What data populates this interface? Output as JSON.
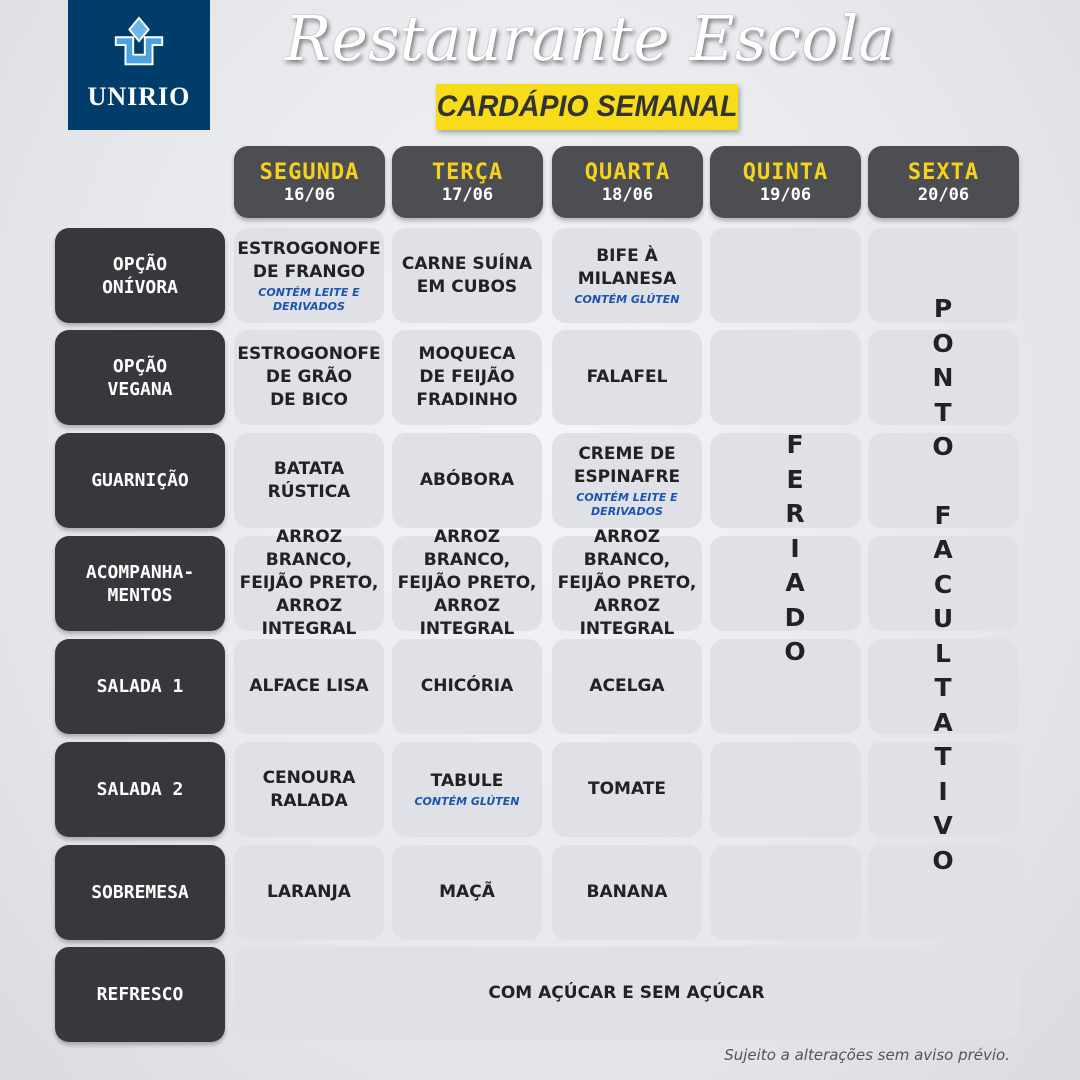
{
  "header": {
    "logo_text": "UNIRIO",
    "title": "Restaurante Escola",
    "subtitle": "CARDÁPIO SEMANAL"
  },
  "days": [
    {
      "name": "SEGUNDA",
      "date": "16/06"
    },
    {
      "name": "TERÇA",
      "date": "17/06"
    },
    {
      "name": "QUARTA",
      "date": "18/06"
    },
    {
      "name": "QUINTA",
      "date": "19/06"
    },
    {
      "name": "SEXTA",
      "date": "20/06"
    }
  ],
  "rows": [
    {
      "label": "OPÇÃO\nONÍVORA",
      "cells": [
        {
          "text": "ESTROGONOFE\nDE FRANGO",
          "note": "CONTÉM LEITE E\nDERIVADOS"
        },
        {
          "text": "CARNE SUÍNA\nEM CUBOS"
        },
        {
          "text": "BIFE À\nMILANESA",
          "note": "CONTÉM GLÚTEN"
        }
      ]
    },
    {
      "label": "OPÇÃO\nVEGANA",
      "cells": [
        {
          "text": "ESTROGONOFE\nDE GRÃO\nDE BICO"
        },
        {
          "text": "MOQUECA\nDE FEIJÃO\nFRADINHO"
        },
        {
          "text": "FALAFEL"
        }
      ]
    },
    {
      "label": "GUARNIÇÃO",
      "cells": [
        {
          "text": "BATATA\nRÚSTICA"
        },
        {
          "text": "ABÓBORA"
        },
        {
          "text": "CREME DE\nESPINAFRE",
          "note": "CONTÉM LEITE E\nDERIVADOS"
        }
      ]
    },
    {
      "label": "ACOMPANHA-\nMENTOS",
      "cells": [
        {
          "text": "ARROZ BRANCO,\nFEIJÃO PRETO,\nARROZ INTEGRAL"
        },
        {
          "text": "ARROZ BRANCO,\nFEIJÃO PRETO,\nARROZ INTEGRAL"
        },
        {
          "text": "ARROZ BRANCO,\nFEIJÃO PRETO,\nARROZ INTEGRAL"
        }
      ]
    },
    {
      "label": "SALADA 1",
      "cells": [
        {
          "text": "ALFACE LISA"
        },
        {
          "text": "CHICÓRIA"
        },
        {
          "text": "ACELGA"
        }
      ]
    },
    {
      "label": "SALADA 2",
      "cells": [
        {
          "text": "CENOURA\nRALADA"
        },
        {
          "text": "TABULE",
          "note": "CONTÉM GLÚTEN"
        },
        {
          "text": "TOMATE"
        }
      ]
    },
    {
      "label": "SOBREMESA",
      "cells": [
        {
          "text": "LARANJA"
        },
        {
          "text": "MAÇÃ"
        },
        {
          "text": "BANANA"
        }
      ]
    }
  ],
  "refresco": {
    "label": "REFRESCO",
    "text": "COM AÇÚCAR E SEM AÇÚCAR"
  },
  "quinta_status": "FERIADO",
  "sexta_status": "PONTO FACULTATIVO",
  "footer": "Sujeito a alterações sem aviso prévio.",
  "colors": {
    "logo_bg": "#003d6b",
    "highlight": "#f8dc1a",
    "day_name": "#f5d21c",
    "dark_cell": "#37383c",
    "note": "#1a55b0"
  }
}
